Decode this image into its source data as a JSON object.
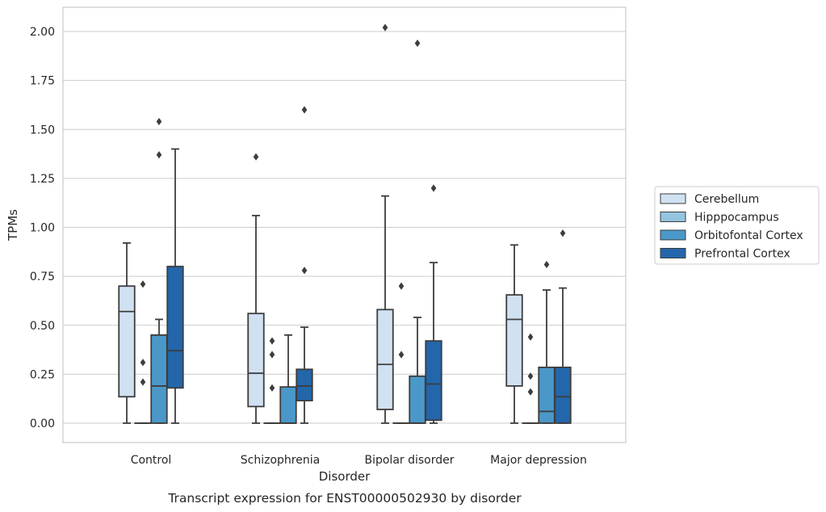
{
  "chart_data": {
    "type": "box",
    "caption": "Transcript expression for ENST00000502930 by disorder",
    "xlabel": "Disorder",
    "ylabel": "TPMs",
    "ylim": [
      -0.1,
      2.12
    ],
    "yticks": [
      "0.00",
      "0.25",
      "0.50",
      "0.75",
      "1.00",
      "1.25",
      "1.50",
      "1.75",
      "2.00"
    ],
    "ytick_values": [
      0,
      0.25,
      0.5,
      0.75,
      1.0,
      1.25,
      1.5,
      1.75,
      2.0
    ],
    "grid": "horizontal",
    "legend_position": "right",
    "categories": [
      "Control",
      "Schizophrenia",
      "Bipolar disorder",
      "Major depression"
    ],
    "series": [
      {
        "name": "Cerebellum",
        "color": "#d0e1f2",
        "boxes": [
          {
            "min": 0.0,
            "q1": 0.135,
            "median": 0.57,
            "q3": 0.7,
            "max": 0.92,
            "outliers": []
          },
          {
            "min": 0.0,
            "q1": 0.085,
            "median": 0.255,
            "q3": 0.56,
            "max": 1.06,
            "outliers": [
              1.36
            ]
          },
          {
            "min": 0.0,
            "q1": 0.07,
            "median": 0.3,
            "q3": 0.58,
            "max": 1.16,
            "outliers": [
              2.02
            ]
          },
          {
            "min": 0.0,
            "q1": 0.19,
            "median": 0.53,
            "q3": 0.655,
            "max": 0.91,
            "outliers": []
          }
        ]
      },
      {
        "name": "Hipppocampus",
        "color": "#94c4df",
        "boxes": [
          {
            "min": 0.0,
            "q1": 0.0,
            "median": 0.0,
            "q3": 0.0,
            "max": 0.0,
            "outliers": [
              0.21,
              0.31,
              0.71
            ]
          },
          {
            "min": 0.0,
            "q1": 0.0,
            "median": 0.0,
            "q3": 0.0,
            "max": 0.0,
            "outliers": [
              0.18,
              0.35,
              0.42
            ]
          },
          {
            "min": 0.0,
            "q1": 0.0,
            "median": 0.0,
            "q3": 0.0,
            "max": 0.0,
            "outliers": [
              0.35,
              0.7
            ]
          },
          {
            "min": 0.0,
            "q1": 0.0,
            "median": 0.0,
            "q3": 0.0,
            "max": 0.0,
            "outliers": [
              0.16,
              0.24,
              0.44
            ]
          }
        ]
      },
      {
        "name": "Orbitofontal Cortex",
        "color": "#4a98c9",
        "boxes": [
          {
            "min": 0.0,
            "q1": 0.0,
            "median": 0.19,
            "q3": 0.45,
            "max": 0.53,
            "outliers": [
              1.37,
              1.54
            ]
          },
          {
            "min": 0.0,
            "q1": 0.0,
            "median": 0.0,
            "q3": 0.185,
            "max": 0.45,
            "outliers": []
          },
          {
            "min": 0.0,
            "q1": 0.0,
            "median": 0.0,
            "q3": 0.24,
            "max": 0.54,
            "outliers": [
              1.94
            ]
          },
          {
            "min": 0.0,
            "q1": 0.0,
            "median": 0.06,
            "q3": 0.285,
            "max": 0.68,
            "outliers": [
              0.81
            ]
          }
        ]
      },
      {
        "name": "Prefrontal Cortex",
        "color": "#2366ab",
        "boxes": [
          {
            "min": 0.0,
            "q1": 0.18,
            "median": 0.37,
            "q3": 0.8,
            "max": 1.4,
            "outliers": []
          },
          {
            "min": 0.0,
            "q1": 0.115,
            "median": 0.19,
            "q3": 0.275,
            "max": 0.49,
            "outliers": [
              0.78,
              1.6
            ]
          },
          {
            "min": 0.0,
            "q1": 0.015,
            "median": 0.2,
            "q3": 0.42,
            "max": 0.82,
            "outliers": [
              1.2
            ]
          },
          {
            "min": 0.0,
            "q1": 0.0,
            "median": 0.135,
            "q3": 0.285,
            "max": 0.69,
            "outliers": [
              0.97
            ]
          }
        ]
      }
    ]
  }
}
